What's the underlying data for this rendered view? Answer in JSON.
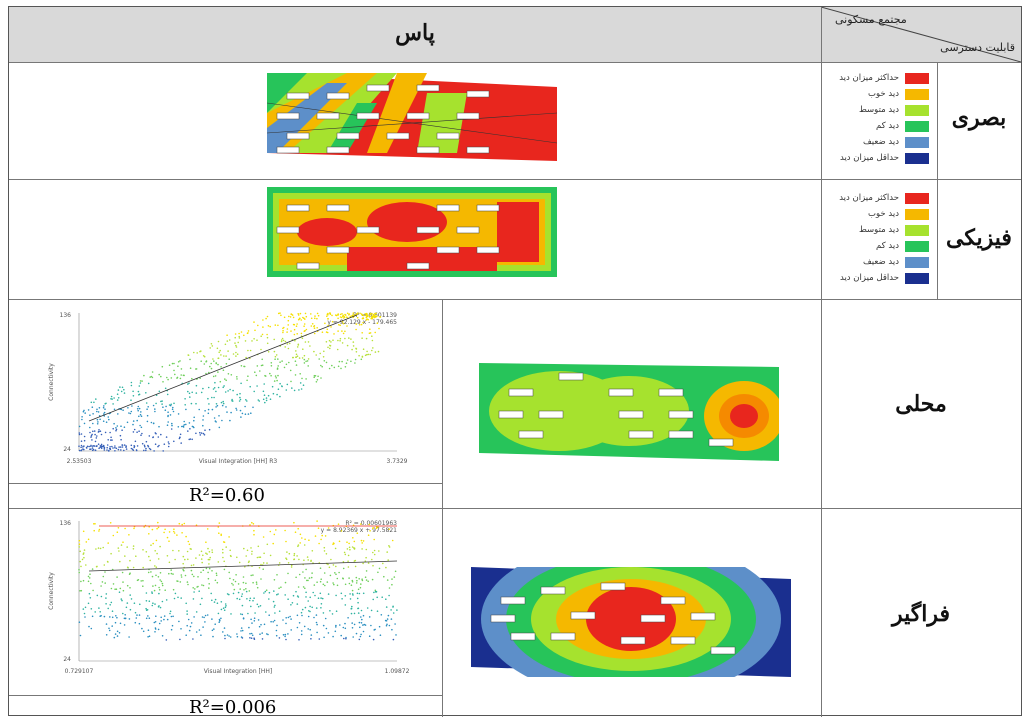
{
  "header": {
    "main_title": "پاس",
    "corner_top": "مجتمع مسکونی",
    "corner_bottom": "قابلیت دسترسی"
  },
  "rows": [
    {
      "label": "بصری"
    },
    {
      "label": "فیزیکی"
    },
    {
      "label": "محلی"
    },
    {
      "label": "فراگیر"
    }
  ],
  "legend": [
    {
      "label": "حداکثر میزان دید",
      "color": "#e8261e"
    },
    {
      "label": "دید خوب",
      "color": "#f5b800"
    },
    {
      "label": "دید متوسط",
      "color": "#a6e22e"
    },
    {
      "label": "دید کم",
      "color": "#27c45a"
    },
    {
      "label": "دید ضعیف",
      "color": "#5d8fc9"
    },
    {
      "label": "حداقل میزان دید",
      "color": "#1a2f8f"
    }
  ],
  "plot_local": {
    "ymax": "136",
    "ymin": "24",
    "xmin": "2.53503",
    "xmax": "3.7329",
    "xlabel": "Visual Integration [HH] R3",
    "ylabel": "Connectivity",
    "r2_text": "R² = 0.601139",
    "eq_text": "y = 92.129 x - 179.465",
    "caption": "R²=0.60"
  },
  "plot_global": {
    "ymax": "136",
    "ymin": "24",
    "xmin": "0.729107",
    "xmax": "1.09872",
    "xlabel": "Visual Integration [HH]",
    "ylabel": "Connectivity",
    "r2_text": "R² = 0.00601963",
    "eq_text": "y = 8.92369 x + 97.5821",
    "caption": "R²=0.006"
  }
}
